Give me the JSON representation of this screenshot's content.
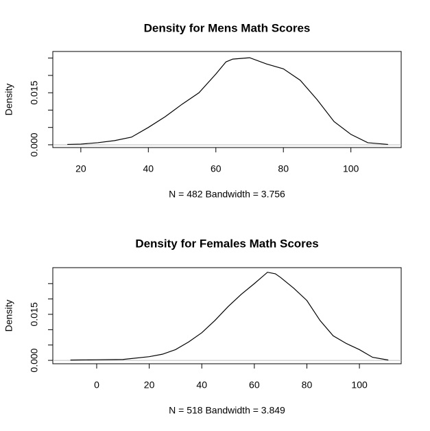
{
  "chart_data": [
    {
      "type": "line",
      "title": "Density for Mens Math Scores",
      "ylabel": "Density",
      "xlabel": "N = 482   Bandwidth = 3.756",
      "color": "#000000",
      "x": [
        16,
        20,
        25,
        30,
        35,
        40,
        45,
        50,
        55,
        60,
        63,
        65,
        70,
        75,
        80,
        85,
        90,
        95,
        100,
        105,
        111
      ],
      "values": [
        0.0001,
        0.0002,
        0.0006,
        0.0012,
        0.0022,
        0.005,
        0.0081,
        0.0117,
        0.015,
        0.0204,
        0.0239,
        0.0247,
        0.0251,
        0.0233,
        0.0219,
        0.0186,
        0.013,
        0.0067,
        0.003,
        0.0006,
        0.0001
      ],
      "xlim": [
        11.7,
        114.9
      ],
      "xticks": [
        20,
        40,
        60,
        80,
        100
      ],
      "ylim": [
        -0.0008,
        0.0269
      ],
      "yticks": [
        {
          "value": 0,
          "label": "0.000"
        },
        {
          "value": 0.015,
          "label": "0.015"
        }
      ],
      "yticks_unlabeled": [
        0.005,
        0.01,
        0.02,
        0.025
      ]
    },
    {
      "type": "line",
      "title": "Density for Females Math Scores",
      "ylabel": "Density",
      "xlabel": "N = 518   Bandwidth = 3.849",
      "color": "#000000",
      "x": [
        -10,
        0,
        10,
        20,
        25,
        30,
        35,
        40,
        45,
        50,
        55,
        60,
        65,
        68,
        70,
        75,
        80,
        85,
        90,
        95,
        100,
        105,
        111
      ],
      "values": [
        0.0001,
        0.0002,
        0.0003,
        0.0012,
        0.002,
        0.0035,
        0.006,
        0.009,
        0.013,
        0.0175,
        0.0215,
        0.025,
        0.0287,
        0.0282,
        0.027,
        0.0235,
        0.0195,
        0.013,
        0.008,
        0.0055,
        0.0035,
        0.001,
        0.0001
      ],
      "xlim": [
        -16.7,
        115.9
      ],
      "xticks": [
        0,
        20,
        40,
        60,
        80,
        100
      ],
      "ylim": [
        -0.0011,
        0.0302
      ],
      "yticks": [
        {
          "value": 0,
          "label": "0.000"
        },
        {
          "value": 0.015,
          "label": "0.015"
        }
      ],
      "yticks_unlabeled": [
        0.005,
        0.01,
        0.02,
        0.025
      ]
    }
  ]
}
